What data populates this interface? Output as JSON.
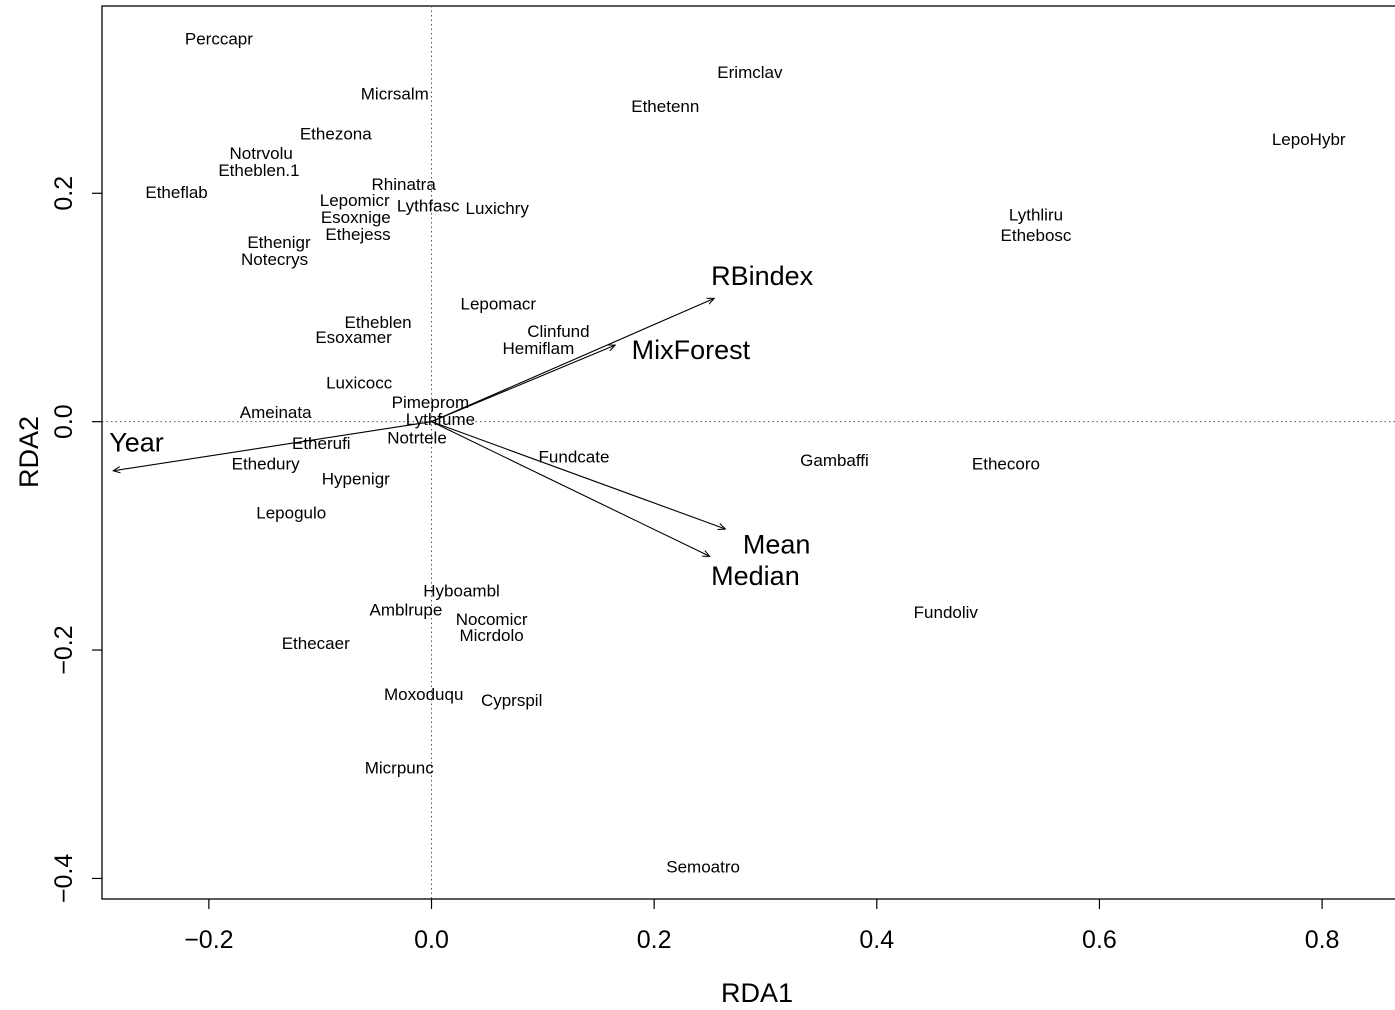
{
  "chart_data": {
    "type": "scatter",
    "xlabel": "RDA1",
    "ylabel": "RDA2",
    "xlim": [
      -0.296,
      0.87
    ],
    "ylim": [
      -0.418,
      0.364
    ],
    "x_ticks": [
      -0.2,
      0.0,
      0.2,
      0.4,
      0.6,
      0.8
    ],
    "y_ticks": [
      -0.4,
      -0.2,
      0.0,
      0.2
    ],
    "x_tick_labels": [
      "−0.2",
      "0.0",
      "0.2",
      "0.4",
      "0.6",
      "0.8"
    ],
    "y_tick_labels": [
      "−0.4",
      "−0.2",
      "0.0",
      "0.2"
    ],
    "reference_lines": {
      "x": 0,
      "y": 0,
      "style": "dotted"
    },
    "species": [
      {
        "label": "Perccapr",
        "x": -0.191,
        "y": 0.334
      },
      {
        "label": "Micrsalm",
        "x": -0.033,
        "y": 0.286
      },
      {
        "label": "Erimclav",
        "x": 0.286,
        "y": 0.305
      },
      {
        "label": "Ethetenn",
        "x": 0.21,
        "y": 0.275
      },
      {
        "label": "Ethezona",
        "x": -0.086,
        "y": 0.251
      },
      {
        "label": "Notrvolu",
        "x": -0.153,
        "y": 0.234
      },
      {
        "label": "Etheblen.1",
        "x": -0.155,
        "y": 0.219
      },
      {
        "label": "Rhinatra",
        "x": -0.025,
        "y": 0.207
      },
      {
        "label": "Etheflab",
        "x": -0.229,
        "y": 0.2
      },
      {
        "label": "Lepomicr",
        "x": -0.069,
        "y": 0.193
      },
      {
        "label": "Lythfasc",
        "x": -0.003,
        "y": 0.188
      },
      {
        "label": "Luxichry",
        "x": 0.059,
        "y": 0.186
      },
      {
        "label": "Esoxnige",
        "x": -0.068,
        "y": 0.178
      },
      {
        "label": "Ethejess",
        "x": -0.066,
        "y": 0.163
      },
      {
        "label": "Ethenigr",
        "x": -0.137,
        "y": 0.156
      },
      {
        "label": "Notecrys",
        "x": -0.141,
        "y": 0.141
      },
      {
        "label": "LepoHybr",
        "x": 0.788,
        "y": 0.246
      },
      {
        "label": "Lythliru",
        "x": 0.543,
        "y": 0.18
      },
      {
        "label": "Ethebosc",
        "x": 0.543,
        "y": 0.162
      },
      {
        "label": "Lepomacr",
        "x": 0.06,
        "y": 0.102
      },
      {
        "label": "Clinfund",
        "x": 0.114,
        "y": 0.078
      },
      {
        "label": "Etheblen",
        "x": -0.048,
        "y": 0.086
      },
      {
        "label": "Esoxamer",
        "x": -0.07,
        "y": 0.073
      },
      {
        "label": "Hemiflam",
        "x": 0.096,
        "y": 0.063
      },
      {
        "label": "Luxicocc",
        "x": -0.065,
        "y": 0.033
      },
      {
        "label": "Pimeprom",
        "x": -0.001,
        "y": 0.016
      },
      {
        "label": "Ameinata",
        "x": -0.14,
        "y": 0.007
      },
      {
        "label": "Lythfume",
        "x": 0.008,
        "y": 0.001
      },
      {
        "label": "Notrtele",
        "x": -0.013,
        "y": -0.015
      },
      {
        "label": "Etherufi",
        "x": -0.099,
        "y": -0.02
      },
      {
        "label": "Ethedury",
        "x": -0.149,
        "y": -0.038
      },
      {
        "label": "Hypenigr",
        "x": -0.068,
        "y": -0.051
      },
      {
        "label": "Fundcate",
        "x": 0.128,
        "y": -0.032
      },
      {
        "label": "Gambaffi",
        "x": 0.362,
        "y": -0.035
      },
      {
        "label": "Ethecoro",
        "x": 0.516,
        "y": -0.038
      },
      {
        "label": "Lepogulo",
        "x": -0.126,
        "y": -0.081
      },
      {
        "label": "Hyboambl",
        "x": 0.027,
        "y": -0.149
      },
      {
        "label": "Amblrupe",
        "x": -0.023,
        "y": -0.166
      },
      {
        "label": "Nocomicr",
        "x": 0.054,
        "y": -0.174
      },
      {
        "label": "Micrdolo",
        "x": 0.054,
        "y": -0.188
      },
      {
        "label": "Fundoliv",
        "x": 0.462,
        "y": -0.168
      },
      {
        "label": "Ethecaer",
        "x": -0.104,
        "y": -0.195
      },
      {
        "label": "Moxoduqu",
        "x": -0.007,
        "y": -0.24
      },
      {
        "label": "Cyprspil",
        "x": 0.072,
        "y": -0.245
      },
      {
        "label": "Micrpunc",
        "x": -0.029,
        "y": -0.304
      },
      {
        "label": "Semoatro",
        "x": 0.244,
        "y": -0.391
      }
    ],
    "env_vectors": [
      {
        "label": "RBindex",
        "x": 0.254,
        "y": 0.108,
        "label_x": 0.297,
        "label_y": 0.126
      },
      {
        "label": "MixForest",
        "x": 0.165,
        "y": 0.067,
        "label_x": 0.233,
        "label_y": 0.061
      },
      {
        "label": "Year",
        "x": -0.286,
        "y": -0.043,
        "label_x": -0.265,
        "label_y": -0.02
      },
      {
        "label": "Mean",
        "x": 0.264,
        "y": -0.094,
        "label_x": 0.31,
        "label_y": -0.109
      },
      {
        "label": "Median",
        "x": 0.25,
        "y": -0.118,
        "label_x": 0.291,
        "label_y": -0.137
      }
    ]
  }
}
